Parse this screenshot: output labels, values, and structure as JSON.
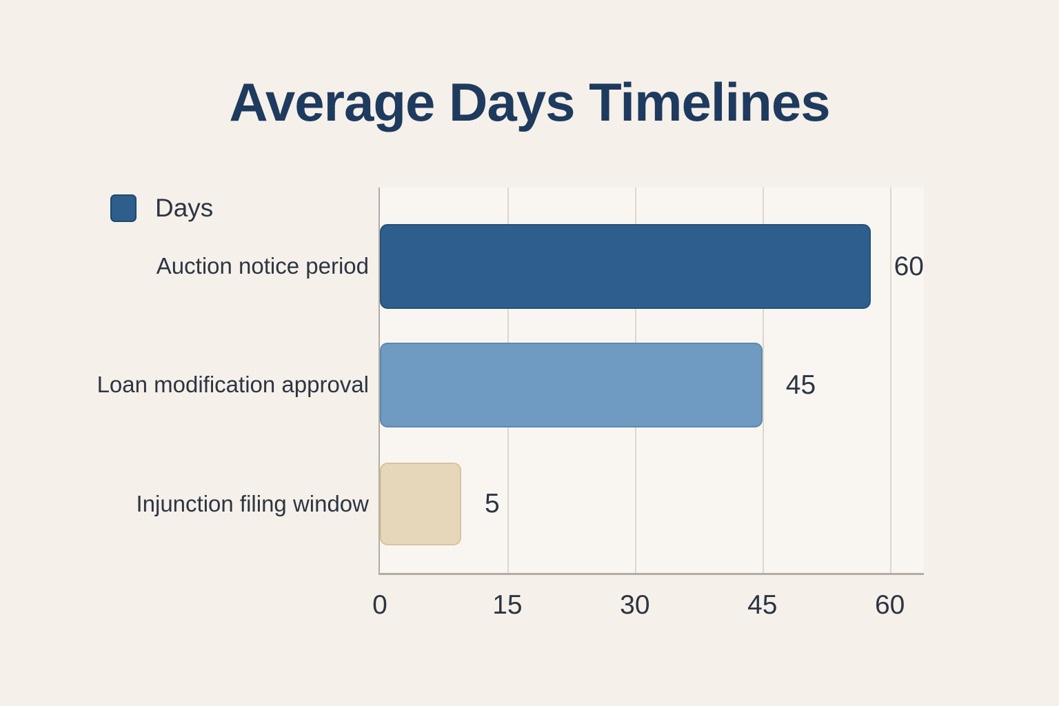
{
  "title": "Average Days Timelines",
  "legend": {
    "label": "Days",
    "swatch_color": "#2e5f8c"
  },
  "colors": {
    "background": "#f5f0e9",
    "plot_background": "rgba(255,255,255,0.42)",
    "title": "#1e3a5e",
    "text": "#2c3542",
    "grid": "#dcd6cb",
    "axis": "#b2aca2"
  },
  "chart_data": {
    "type": "bar",
    "orientation": "horizontal",
    "title": "Average Days Timelines",
    "xlabel": "",
    "ylabel": "",
    "categories": [
      "Auction notice period",
      "Loan modification approval",
      "Injunction filing window"
    ],
    "series": [
      {
        "name": "Days",
        "values": [
          60,
          45,
          5
        ]
      }
    ],
    "value_labels": [
      "60",
      "45",
      "5"
    ],
    "bar_colors": [
      "#2e5f8c",
      "#6f9ac1",
      "#e6d7bb"
    ],
    "bar_border_colors": [
      "#24517c",
      "#5d88ae",
      "#d5c4a1"
    ],
    "xlim": [
      0,
      64
    ],
    "xticks": [
      0,
      15,
      30,
      45,
      60
    ],
    "grid": true,
    "legend_position": "top-left"
  }
}
